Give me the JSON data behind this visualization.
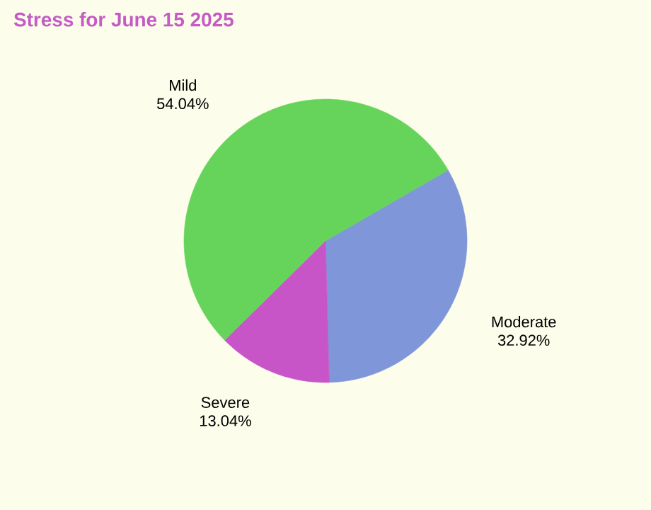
{
  "chart_data": {
    "type": "pie",
    "title": "Stress for June 15 2025",
    "categories": [
      "Moderate",
      "Severe",
      "Mild"
    ],
    "values": [
      32.92,
      13.04,
      54.04
    ],
    "value_labels": [
      "32.92%",
      "13.04%",
      "54.04%"
    ],
    "colors": [
      "#7f96d8",
      "#c855c8",
      "#66d45a"
    ]
  }
}
